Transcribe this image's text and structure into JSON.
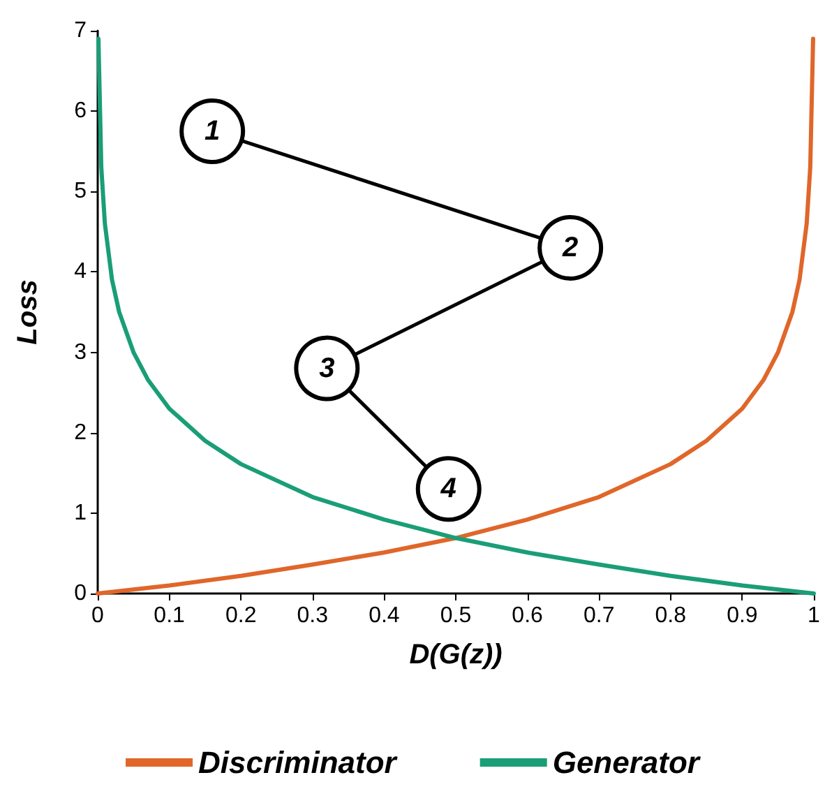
{
  "chart_data": {
    "type": "line",
    "xlabel": "D(G(z))",
    "ylabel": "Loss",
    "xlim": [
      0,
      1
    ],
    "ylim": [
      0,
      7
    ],
    "xticks": [
      0,
      0.1,
      0.2,
      0.3,
      0.4,
      0.5,
      0.6,
      0.7,
      0.8,
      0.9,
      1
    ],
    "yticks": [
      0,
      1,
      2,
      3,
      4,
      5,
      6,
      7
    ],
    "grid": false,
    "legend": "bottom",
    "marker": "none",
    "line_style": "solid",
    "series": [
      {
        "name": "Discriminator",
        "color": "#e0662a",
        "x": [
          0,
          0.1,
          0.2,
          0.3,
          0.4,
          0.5,
          0.6,
          0.7,
          0.8,
          0.85,
          0.9,
          0.93,
          0.95,
          0.97,
          0.98,
          0.99,
          0.995,
          0.999
        ],
        "values": [
          0,
          0.1,
          0.22,
          0.36,
          0.51,
          0.69,
          0.92,
          1.2,
          1.61,
          1.9,
          2.3,
          2.66,
          3.0,
          3.5,
          3.9,
          4.6,
          5.3,
          6.9
        ]
      },
      {
        "name": "Generator",
        "color": "#1a9e77",
        "x": [
          0.001,
          0.005,
          0.01,
          0.02,
          0.03,
          0.05,
          0.07,
          0.1,
          0.15,
          0.2,
          0.3,
          0.4,
          0.5,
          0.6,
          0.7,
          0.8,
          0.9,
          1
        ],
        "values": [
          6.9,
          5.3,
          4.6,
          3.9,
          3.5,
          3.0,
          2.66,
          2.3,
          1.9,
          1.61,
          1.2,
          0.92,
          0.69,
          0.51,
          0.36,
          0.22,
          0.1,
          0
        ]
      },
      {
        "color": "#000000",
        "marker": "circle",
        "x": [
          0.16,
          0.66,
          0.32,
          0.49
        ],
        "values": [
          5.75,
          4.3,
          2.8,
          1.3
        ]
      }
    ],
    "annotations": [
      {
        "text": "1",
        "x": 0.16,
        "y": 5.75
      },
      {
        "text": "2",
        "x": 0.66,
        "y": 4.3
      },
      {
        "text": "3",
        "x": 0.32,
        "y": 2.8
      },
      {
        "text": "4",
        "x": 0.49,
        "y": 1.3
      }
    ]
  }
}
